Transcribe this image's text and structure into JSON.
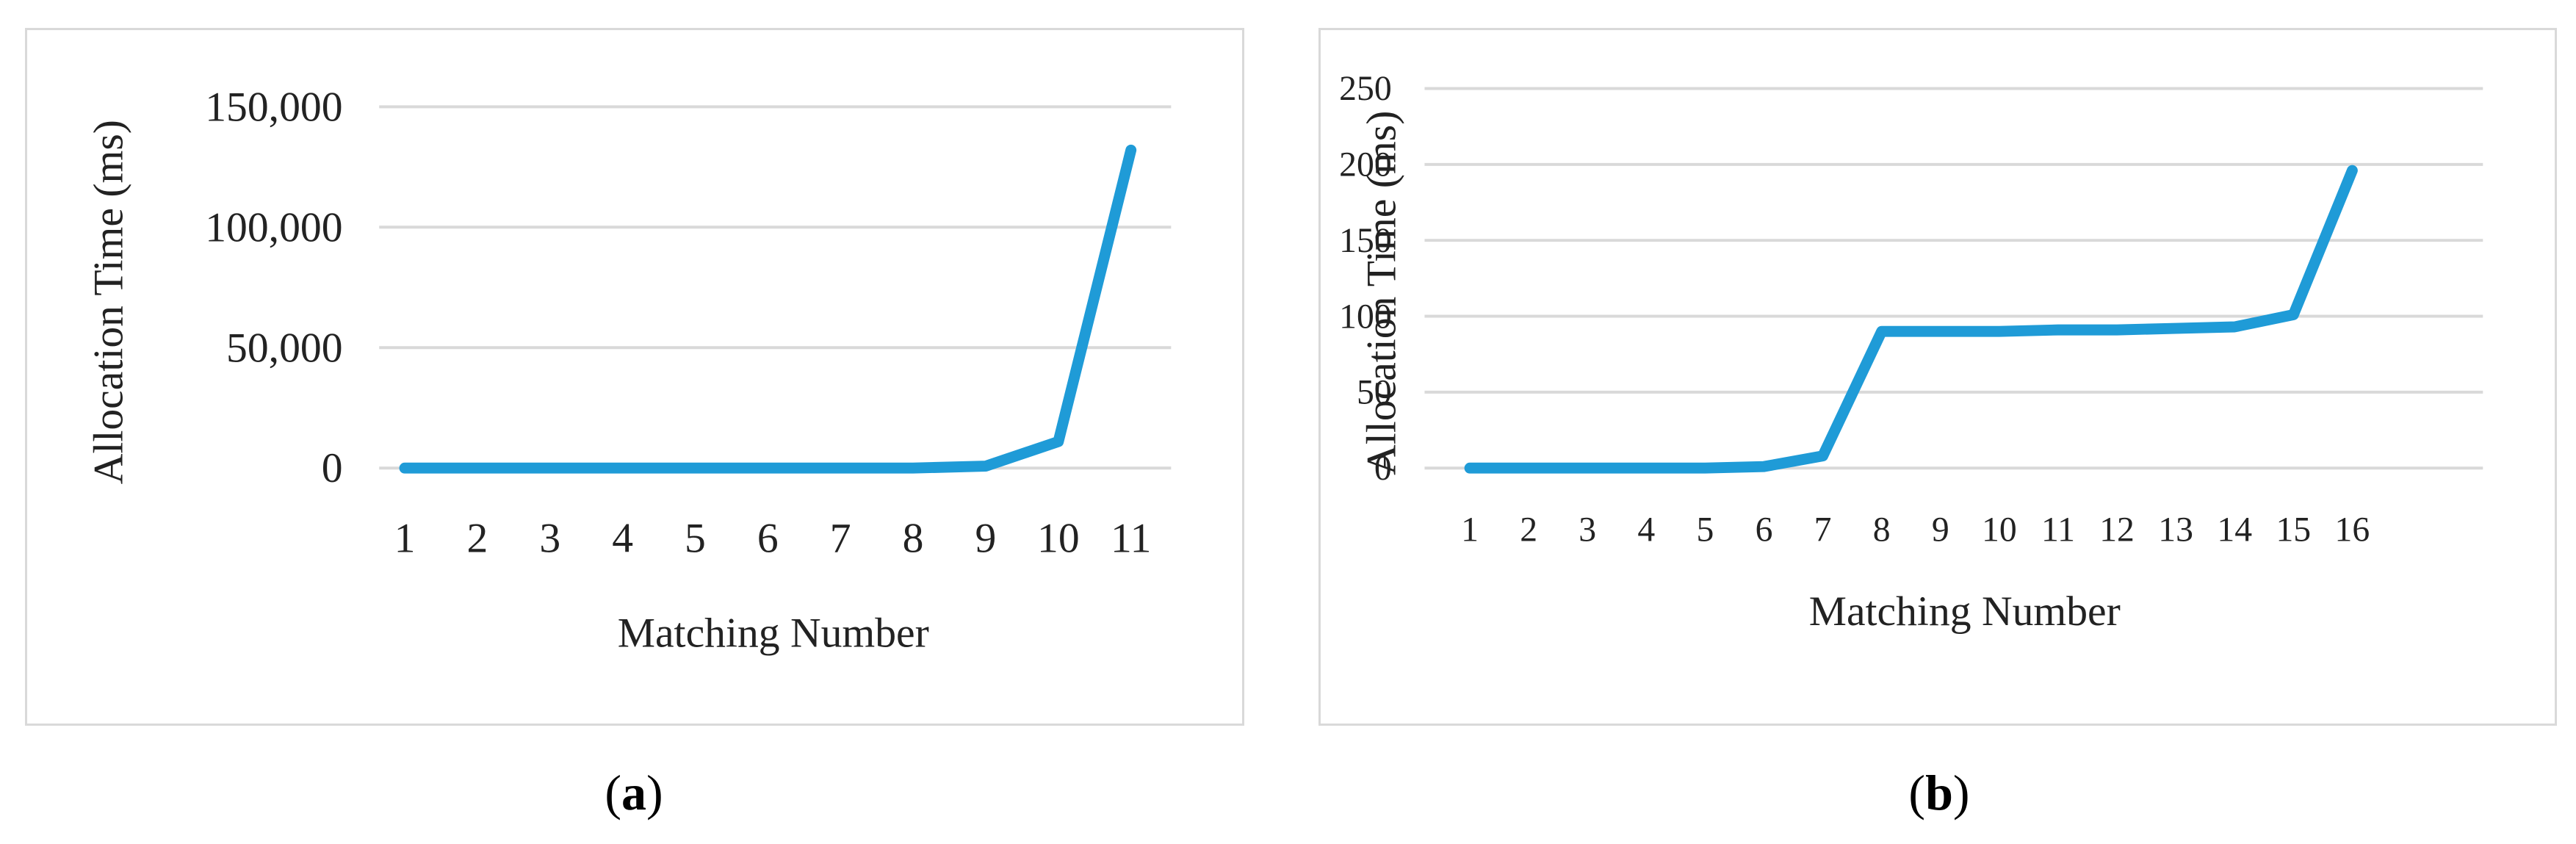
{
  "chart_data": [
    {
      "type": "line",
      "panel_label": "a",
      "categories": [
        "1",
        "2",
        "3",
        "4",
        "5",
        "6",
        "7",
        "8",
        "9",
        "10",
        "11"
      ],
      "series": [
        {
          "values": [
            0,
            0,
            0,
            0,
            0,
            0,
            0,
            0,
            800,
            11000,
            132000
          ],
          "color": "#1f9bd7"
        }
      ],
      "y_ticks": [
        "0",
        "50,000",
        "100,000",
        "150,000"
      ],
      "ylim": [
        0,
        150000
      ],
      "xlabel": "Matching Number",
      "ylabel": "Allocation Time (ms)",
      "grid": true,
      "legend": "none"
    },
    {
      "type": "line",
      "panel_label": "b",
      "categories": [
        "1",
        "2",
        "3",
        "4",
        "5",
        "6",
        "7",
        "8",
        "9",
        "10",
        "11",
        "12",
        "13",
        "14",
        "15",
        "16"
      ],
      "series": [
        {
          "values": [
            0,
            0,
            0,
            0,
            0,
            1,
            8,
            90,
            90,
            90,
            91,
            91,
            92,
            93,
            101,
            196
          ],
          "color": "#1f9bd7"
        }
      ],
      "y_ticks": [
        "0",
        "50",
        "100",
        "150",
        "200",
        "250"
      ],
      "ylim": [
        0,
        250
      ],
      "xlabel": "Matching Number",
      "ylabel": "Allocation Time (ms)",
      "grid": true,
      "legend": "none"
    }
  ]
}
